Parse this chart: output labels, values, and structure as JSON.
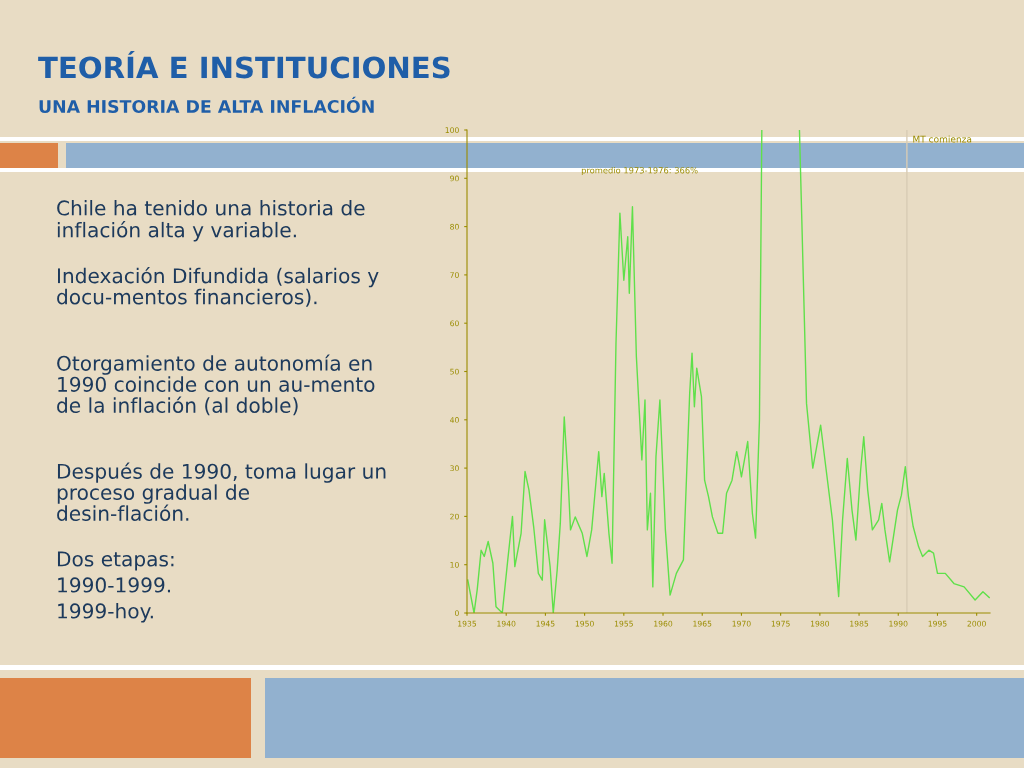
{
  "chart_data": {
    "type": "line",
    "title": "TEORÍA E INSTITUCIONES",
    "subtitle": "UNA HISTORIA DE ALTA INFLACIÓN",
    "annotations": [
      "Chile ha tenido una historia de inflación alta y variable.",
      "Indexación Difundida (salarios y docu-mentos financieros).",
      "Otorgamiento de autonomía en 1990 coincide con un au-mento de la inflación (al doble)",
      "Después de 1990, toma lugar un proceso gradual de desin-flación.",
      "Dos etapas:",
      "1990-1999.",
      "1999-hoy.",
      "promedio 1973-1976: 366%"
    ],
    "series": [
      {
        "color": "#5fe04a",
        "x": [
          1935.1,
          1935.9,
          1936.3,
          1936.8,
          1937.2,
          1937.7,
          1938.3,
          1938.7,
          1939.5,
          1940.2,
          1940.8,
          1941.1,
          1941.9,
          1942.4,
          1942.9,
          1943.5,
          1944.1,
          1944.6,
          1944.9,
          1945.6,
          1946.0,
          1946.5,
          1946.9,
          1947.4,
          1947.9,
          1948.2,
          1948.8,
          1949.7,
          1950.3,
          1950.9,
          1951.8,
          1952.2,
          1952.5,
          1953.1,
          1953.5,
          1954.0,
          1954.5,
          1955.0,
          1955.5,
          1955.7,
          1956.1,
          1956.6,
          1957.3,
          1957.7,
          1958.0,
          1958.4,
          1958.7,
          1959.1,
          1959.6,
          1960.3,
          1960.9,
          1961.7,
          1962.6,
          1963.4,
          1963.7,
          1964.0,
          1964.3,
          1964.9,
          1965.3,
          1965.8,
          1966.3,
          1967.0,
          1967.6,
          1968.1,
          1968.8,
          1969.4,
          1969.7,
          1970.0,
          1970.8,
          1971.4,
          1971.8,
          1972.3,
          1972.6,
          1975.0,
          1977.4,
          1977.7,
          1978.3,
          1979.1,
          1980.1,
          1980.7,
          1981.6,
          1982.4,
          1982.9,
          1983.5,
          1984.1,
          1984.6,
          1985.2,
          1985.6,
          1986.1,
          1986.7,
          1987.5,
          1987.9,
          1988.3,
          1988.9,
          1989.9,
          1990.4,
          1990.9,
          1991.3,
          1991.9,
          1992.6,
          1993.1,
          1993.9,
          1994.5,
          1995.0,
          1996.0,
          1997.1,
          1998.4,
          1999.8,
          2000.8,
          2001.6
        ],
        "values": [
          6.8,
          0,
          4.8,
          13,
          11.7,
          14.8,
          10.3,
          1.3,
          0,
          11,
          20,
          9.6,
          16.5,
          29.3,
          25.5,
          17.9,
          8.2,
          6.8,
          19.3,
          9.6,
          0,
          8.9,
          18.6,
          40.6,
          27.5,
          17.2,
          19.9,
          16.5,
          11.7,
          17.2,
          33.4,
          24.1,
          28.9,
          16.5,
          10.3,
          55.8,
          82.8,
          68.9,
          77.9,
          66.2,
          84.1,
          53.1,
          31.7,
          44.1,
          17.2,
          24.8,
          5.4,
          32.4,
          44.1,
          17.2,
          3.7,
          8.2,
          11,
          45.5,
          53.8,
          42.7,
          50.7,
          44.8,
          27.5,
          24.1,
          19.9,
          16.5,
          16.5,
          24.8,
          27.5,
          33.4,
          31,
          28.2,
          35.5,
          20.6,
          15.5,
          40,
          100,
          null,
          100,
          81.4,
          43.4,
          30,
          38.9,
          31,
          19.3,
          3.4,
          19.3,
          32,
          21.3,
          15.1,
          29.6,
          36.5,
          25.5,
          17.2,
          19.3,
          22.7,
          17.2,
          10.6,
          21.3,
          24.4,
          30.3,
          24.1,
          17.9,
          13.7,
          11.7,
          13,
          12.4,
          8.2,
          8.2,
          6.1,
          5.4,
          2.7,
          4.4,
          3.2
        ]
      }
    ],
    "xlim": [
      1935,
      2001.7
    ],
    "ylim": [
      0,
      100
    ],
    "xticks": [
      1935,
      1940,
      1945,
      1950,
      1955,
      1960,
      1965,
      1970,
      1975,
      1980,
      1985,
      1990,
      1995,
      2000
    ],
    "yticks": [
      0,
      10,
      20,
      30,
      40,
      50,
      60,
      70,
      80,
      90,
      100
    ],
    "ref_lines": [
      {
        "axis": "x",
        "value": 1991.1,
        "label": "MT comienza",
        "color": "#d8ccb4"
      }
    ],
    "grid": false,
    "legend": false,
    "marker": "none",
    "line_style": "solid"
  }
}
